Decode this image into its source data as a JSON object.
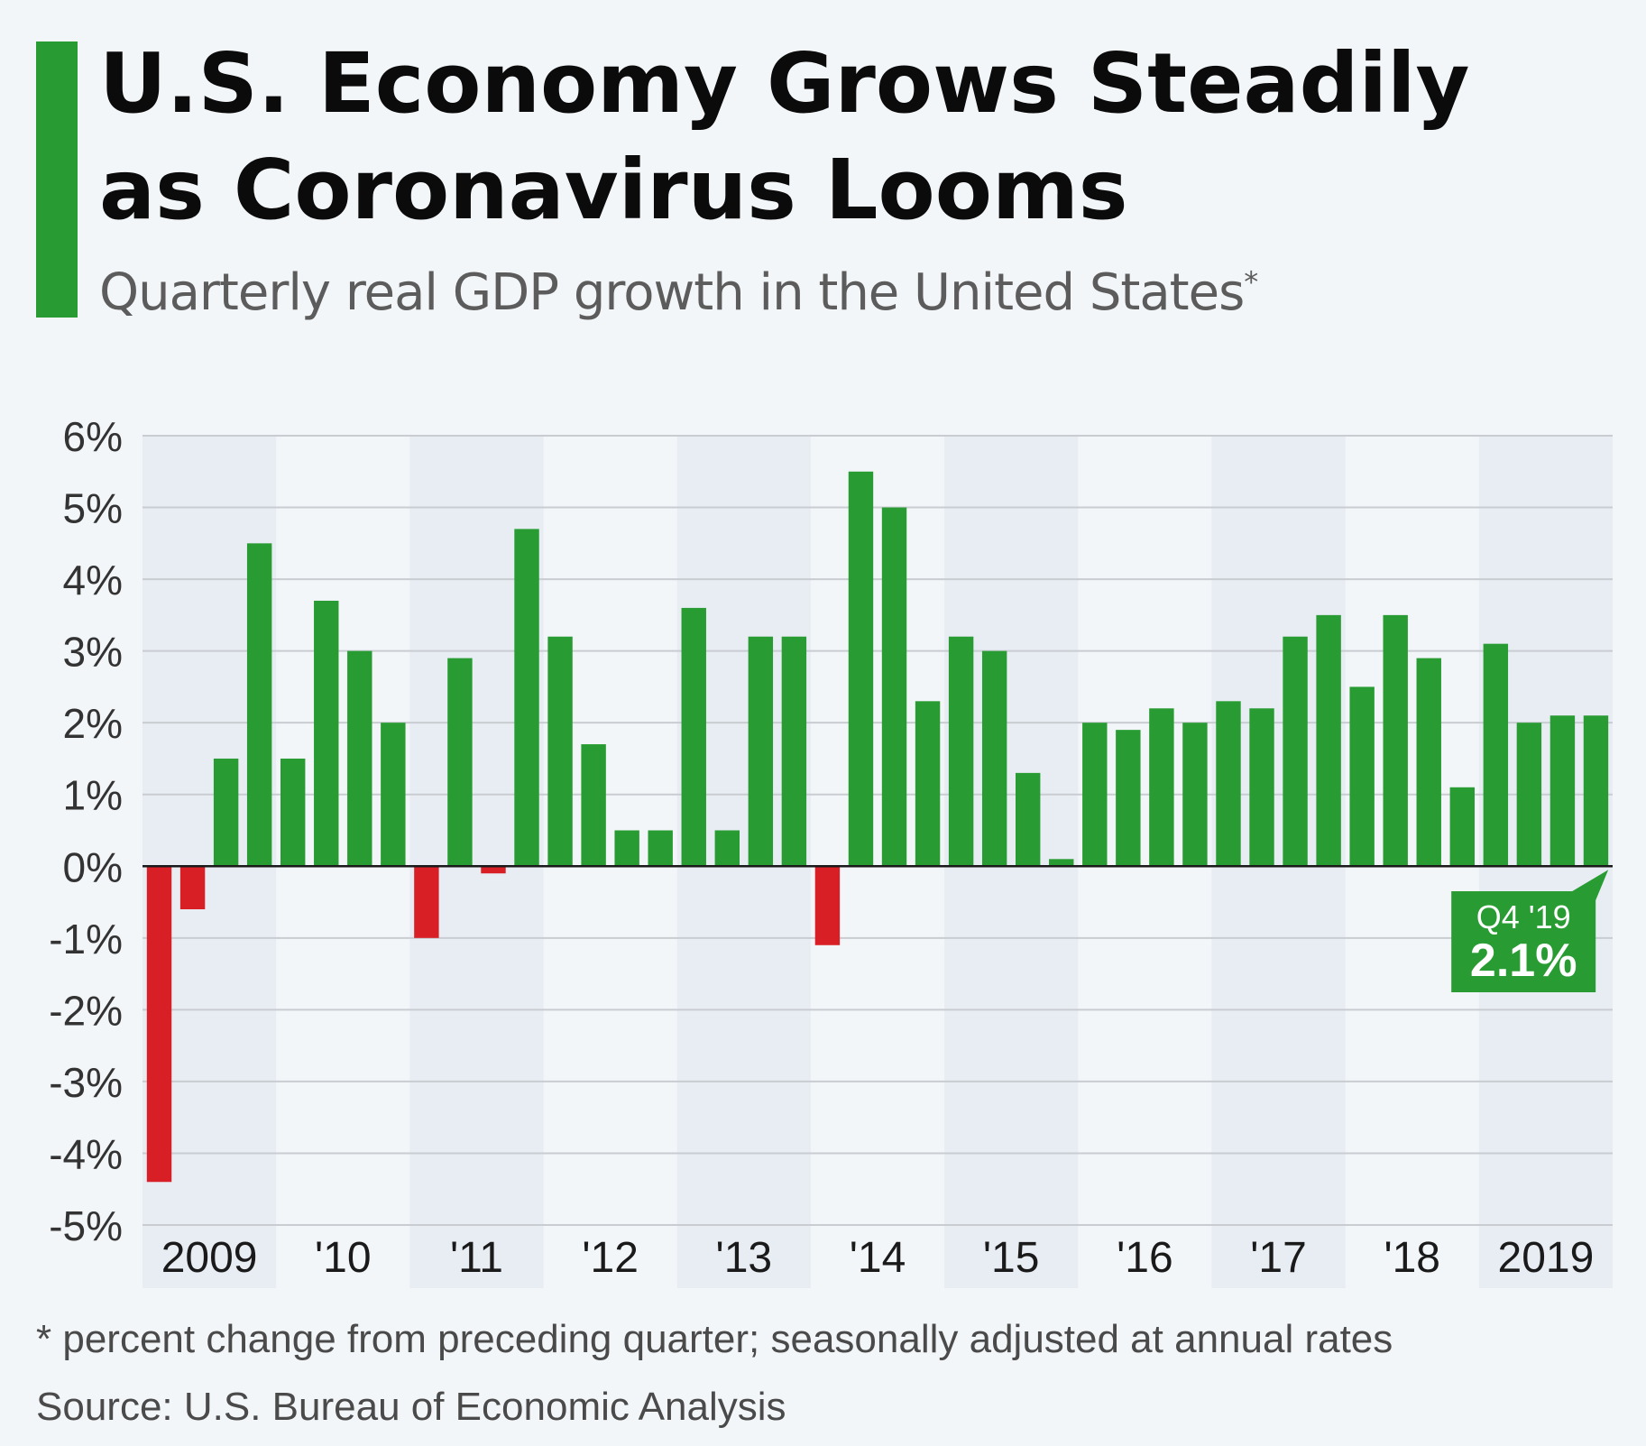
{
  "colors": {
    "accent": "#289c32",
    "positive": "#289c32",
    "negative": "#d91f26",
    "band": "#e8edf4",
    "grid": "#c9cdd2",
    "callout": "#289c32"
  },
  "header": {
    "title_line1": "U.S. Economy Grows Steadily",
    "title_line2": "as Coronavirus Looms",
    "subtitle": "Quarterly real GDP growth in the United States",
    "subtitle_mark": "*"
  },
  "chart_data": {
    "type": "bar",
    "title": "Quarterly real GDP growth in the United States",
    "xlabel": "",
    "ylabel": "",
    "ylim": [
      -5,
      6
    ],
    "yticks": [
      6,
      5,
      4,
      3,
      2,
      1,
      0,
      -1,
      -2,
      -3,
      -4,
      -5
    ],
    "ytick_labels": [
      "6%",
      "5%",
      "4%",
      "3%",
      "2%",
      "1%",
      "0%",
      "-1%",
      "-2%",
      "-3%",
      "-4%",
      "-5%"
    ],
    "year_labels": [
      "2009",
      "'10",
      "'11",
      "'12",
      "'13",
      "'14",
      "'15",
      "'16",
      "'17",
      "'18",
      "2019"
    ],
    "grid": true,
    "categories": [
      "Q1 2009",
      "Q2 2009",
      "Q3 2009",
      "Q4 2009",
      "Q1 2010",
      "Q2 2010",
      "Q3 2010",
      "Q4 2010",
      "Q1 2011",
      "Q2 2011",
      "Q3 2011",
      "Q4 2011",
      "Q1 2012",
      "Q2 2012",
      "Q3 2012",
      "Q4 2012",
      "Q1 2013",
      "Q2 2013",
      "Q3 2013",
      "Q4 2013",
      "Q1 2014",
      "Q2 2014",
      "Q3 2014",
      "Q4 2014",
      "Q1 2015",
      "Q2 2015",
      "Q3 2015",
      "Q4 2015",
      "Q1 2016",
      "Q2 2016",
      "Q3 2016",
      "Q4 2016",
      "Q1 2017",
      "Q2 2017",
      "Q3 2017",
      "Q4 2017",
      "Q1 2018",
      "Q2 2018",
      "Q3 2018",
      "Q4 2018",
      "Q1 2019",
      "Q2 2019",
      "Q3 2019",
      "Q4 2019"
    ],
    "values": [
      -4.4,
      -0.6,
      1.5,
      4.5,
      1.5,
      3.7,
      3.0,
      2.0,
      -1.0,
      2.9,
      -0.1,
      4.7,
      3.2,
      1.7,
      0.5,
      0.5,
      3.6,
      0.5,
      3.2,
      3.2,
      -1.1,
      5.5,
      5.0,
      2.3,
      3.2,
      3.0,
      1.3,
      0.1,
      2.0,
      1.9,
      2.2,
      2.0,
      2.3,
      2.2,
      3.2,
      3.5,
      2.5,
      3.5,
      2.9,
      1.1,
      3.1,
      2.0,
      2.1,
      2.1
    ],
    "annotation": {
      "label": "Q4 '19",
      "value_label": "2.1%",
      "index": 43
    }
  },
  "footer": {
    "footnote": "* percent change from preceding quarter; seasonally adjusted at annual rates",
    "source": "Source: U.S. Bureau of Economic Analysis"
  }
}
